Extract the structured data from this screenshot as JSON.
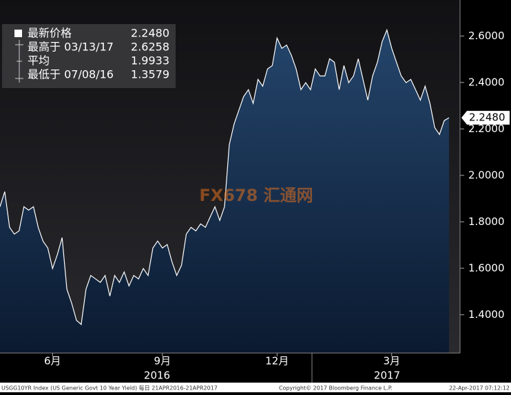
{
  "chart_data": {
    "type": "area",
    "categories": [
      null,
      null,
      null,
      null,
      null,
      null,
      null,
      null,
      null,
      null,
      null,
      "6月",
      null,
      null,
      null,
      null,
      null,
      null,
      null,
      null,
      null,
      null,
      null,
      null,
      null,
      null,
      null,
      null,
      null,
      null,
      null,
      null,
      null,
      null,
      "9月",
      null,
      null,
      null,
      null,
      null,
      null,
      null,
      null,
      null,
      null,
      null,
      null,
      null,
      null,
      null,
      null,
      null,
      null,
      null,
      null,
      null,
      null,
      null,
      "12月",
      null,
      null,
      null,
      null,
      null,
      null,
      null,
      null,
      null,
      null,
      null,
      null,
      null,
      null,
      null,
      null,
      null,
      null,
      null,
      null,
      null,
      null,
      null,
      "3月",
      null,
      null,
      null,
      null,
      null,
      null,
      null,
      null,
      null,
      null,
      null,
      null
    ],
    "values": [
      1.865,
      1.93,
      1.776,
      1.747,
      1.761,
      1.865,
      1.85,
      1.865,
      1.776,
      1.717,
      1.687,
      1.599,
      1.658,
      1.732,
      1.51,
      1.45,
      1.376,
      1.358,
      1.51,
      1.569,
      1.554,
      1.539,
      1.569,
      1.48,
      1.569,
      1.539,
      1.584,
      1.524,
      1.569,
      1.554,
      1.599,
      1.569,
      1.687,
      1.717,
      1.687,
      1.702,
      1.628,
      1.569,
      1.613,
      1.747,
      1.776,
      1.761,
      1.791,
      1.776,
      1.821,
      1.865,
      1.806,
      1.865,
      2.132,
      2.221,
      2.28,
      2.339,
      2.369,
      2.31,
      2.413,
      2.384,
      2.458,
      2.473,
      2.591,
      2.547,
      2.561,
      2.517,
      2.458,
      2.369,
      2.399,
      2.369,
      2.458,
      2.428,
      2.428,
      2.502,
      2.487,
      2.369,
      2.473,
      2.399,
      2.428,
      2.502,
      2.413,
      2.324,
      2.428,
      2.487,
      2.576,
      2.626,
      2.547,
      2.487,
      2.428,
      2.399,
      2.413,
      2.369,
      2.324,
      2.384,
      2.31,
      2.206,
      2.176,
      2.236,
      2.248
    ],
    "color": "#ffffff",
    "ylim": [
      1.235,
      2.755
    ],
    "yticks": [
      {
        "value": 1.4,
        "label": "1.4000"
      },
      {
        "value": 1.6,
        "label": "1.6000"
      },
      {
        "value": 1.8,
        "label": "1.8000"
      },
      {
        "value": 2.0,
        "label": "2.0000"
      },
      {
        "value": 2.2,
        "label": "2.2000"
      },
      {
        "value": 2.4,
        "label": "2.4000"
      },
      {
        "value": 2.6,
        "label": "2.6000"
      }
    ],
    "year_labels": [
      "2016",
      "2017"
    ],
    "stats": [
      {
        "name": "最新价格",
        "value": "2.2480"
      },
      {
        "name": "最高于 03/13/17",
        "value": "2.6258"
      },
      {
        "name": "平均",
        "value": "1.9933"
      },
      {
        "name": "最低于 07/08/16",
        "value": "1.3579"
      }
    ],
    "watermark": "FX678 汇通网",
    "footer": [
      "USGG10YR Index (US Generic Govt 10 Year Yield) 每日 21APR2016-21APR2017",
      "Copyright© 2017 Bloomberg Finance L.P.",
      "22-Apr-2017 07:12:12"
    ]
  }
}
